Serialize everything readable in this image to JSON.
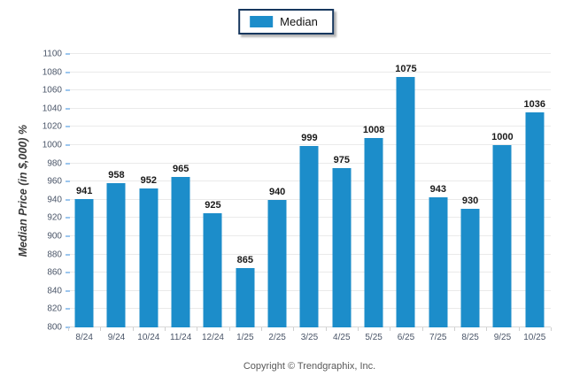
{
  "legend": {
    "items": [
      {
        "label": "Median",
        "color": "#1c8dca"
      }
    ]
  },
  "chart_data": {
    "type": "bar",
    "title": "",
    "categories": [
      "8/24",
      "9/24",
      "10/24",
      "11/24",
      "12/24",
      "1/25",
      "2/25",
      "3/25",
      "4/25",
      "5/25",
      "6/25",
      "7/25",
      "8/25",
      "9/25",
      "10/25"
    ],
    "series": [
      {
        "name": "Median",
        "values": [
          941,
          958,
          952,
          965,
          925,
          865,
          940,
          999,
          975,
          1008,
          1075,
          943,
          930,
          1000,
          1036
        ]
      }
    ],
    "xlabel": "",
    "ylabel": "Median Price (in $,000) %",
    "ylim": [
      800,
      1100
    ],
    "ytick_step": 20,
    "grid": "horizontal",
    "legend_position": "top-center",
    "bar_color": "#1c8dca",
    "data_labels": true
  },
  "footer": {
    "copyright": "Copyright © Trendgraphix, Inc."
  }
}
